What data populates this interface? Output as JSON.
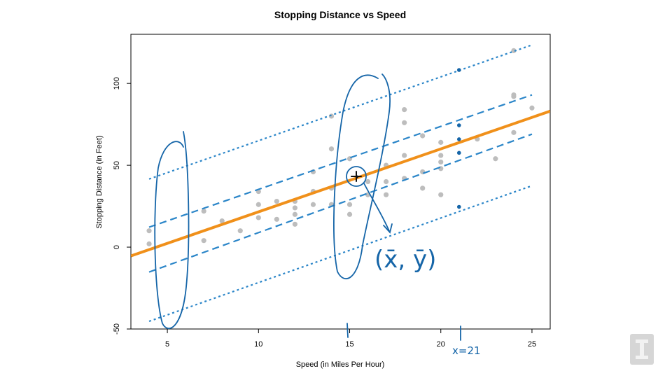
{
  "chart_data": {
    "type": "scatter",
    "title": "Stopping Distance vs Speed",
    "xlabel": "Speed (in Miles Per Hour)",
    "ylabel": "Stopping Distance (in Feet)",
    "xlim": [
      3,
      26
    ],
    "ylim": [
      -50,
      130
    ],
    "x_ticks": [
      "5",
      "10",
      "15",
      "20",
      "25"
    ],
    "y_ticks": [
      "-50",
      "0",
      "50",
      "100"
    ],
    "grid": false,
    "points": [
      [
        4,
        2
      ],
      [
        4,
        10
      ],
      [
        7,
        4
      ],
      [
        7,
        22
      ],
      [
        8,
        16
      ],
      [
        9,
        10
      ],
      [
        10,
        18
      ],
      [
        10,
        26
      ],
      [
        10,
        34
      ],
      [
        11,
        17
      ],
      [
        11,
        28
      ],
      [
        12,
        14
      ],
      [
        12,
        20
      ],
      [
        12,
        24
      ],
      [
        12,
        28
      ],
      [
        13,
        26
      ],
      [
        13,
        34
      ],
      [
        13,
        34
      ],
      [
        13,
        46
      ],
      [
        14,
        26
      ],
      [
        14,
        36
      ],
      [
        14,
        60
      ],
      [
        14,
        80
      ],
      [
        15,
        20
      ],
      [
        15,
        26
      ],
      [
        15,
        54
      ],
      [
        16,
        32
      ],
      [
        16,
        40
      ],
      [
        17,
        32
      ],
      [
        17,
        40
      ],
      [
        17,
        50
      ],
      [
        18,
        42
      ],
      [
        18,
        56
      ],
      [
        18,
        76
      ],
      [
        18,
        84
      ],
      [
        19,
        36
      ],
      [
        19,
        46
      ],
      [
        19,
        68
      ],
      [
        20,
        32
      ],
      [
        20,
        48
      ],
      [
        20,
        52
      ],
      [
        20,
        56
      ],
      [
        20,
        64
      ],
      [
        22,
        66
      ],
      [
        23,
        54
      ],
      [
        24,
        70
      ],
      [
        24,
        92
      ],
      [
        24,
        93
      ],
      [
        24,
        120
      ],
      [
        25,
        85
      ]
    ],
    "series": [
      {
        "kind": "fit",
        "style": "solid",
        "color": "#f0901a",
        "x": [
          3,
          26
        ],
        "y": [
          -5.39,
          83.08
        ]
      },
      {
        "kind": "confidence-upper",
        "style": "dashed",
        "color": "#2a85c8",
        "x": [
          4,
          25
        ],
        "y": [
          12.2,
          93.0
        ]
      },
      {
        "kind": "confidence-lower",
        "style": "dashed",
        "color": "#2a85c8",
        "x": [
          4,
          25
        ],
        "y": [
          -15.2,
          69.0
        ]
      },
      {
        "kind": "prediction-upper",
        "style": "dotted",
        "color": "#2a85c8",
        "x": [
          4,
          25
        ],
        "y": [
          41.6,
          123.5
        ]
      },
      {
        "kind": "prediction-lower",
        "style": "dotted",
        "color": "#2a85c8",
        "x": [
          4,
          25
        ],
        "y": [
          -45.3,
          37.5
        ]
      }
    ],
    "annotations": {
      "mean_point": [
        15.4,
        42.98
      ],
      "marked_points_at_x21": [
        108.2,
        74.4,
        65.9,
        57.6,
        24.6
      ],
      "handwritten_mean_label": "(x̄, ȳ)",
      "handwritten_x_label": "x=21",
      "ink_color": "#1565a8"
    },
    "point_color": "#bdbdbd"
  }
}
